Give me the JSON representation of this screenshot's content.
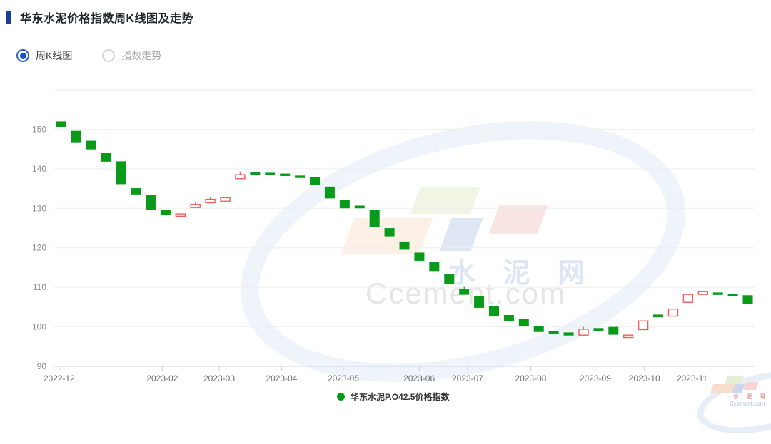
{
  "header": {
    "title": "华东水泥价格指数周K线图及走势"
  },
  "controls": {
    "radio_options": [
      {
        "label": "周K线图",
        "selected": true
      },
      {
        "label": "指数走势",
        "selected": false
      }
    ]
  },
  "watermark": {
    "brand": "水 泥 网",
    "domain": "Ccement.com"
  },
  "corner_logo": {
    "brand": "水 泥 网",
    "domain": "Ccement.com"
  },
  "chart_data": {
    "type": "candlestick",
    "legend": "华东水泥P.O42.5价格指数",
    "colors": {
      "down": "#089a18",
      "up": "#f15c5c",
      "up_fill": "#ffffff",
      "grid": "#eeeeee",
      "axis_line": "#ccd3e3",
      "tick": "#c3cce0",
      "y_label": "#8c8c8c",
      "x_label": "#6e6e6e"
    },
    "y_axis": {
      "min": 90,
      "max": 160,
      "ticks": [
        90,
        100,
        110,
        120,
        130,
        140,
        150
      ]
    },
    "x_ticks": [
      {
        "label": "2022-12",
        "pos": 0.008
      },
      {
        "label": "2023-02",
        "pos": 0.155
      },
      {
        "label": "2023-03",
        "pos": 0.236
      },
      {
        "label": "2023-04",
        "pos": 0.325
      },
      {
        "label": "2023-05",
        "pos": 0.413
      },
      {
        "label": "2023-06",
        "pos": 0.521
      },
      {
        "label": "2023-07",
        "pos": 0.59
      },
      {
        "label": "2023-08",
        "pos": 0.68
      },
      {
        "label": "2023-09",
        "pos": 0.772
      },
      {
        "label": "2023-10",
        "pos": 0.842
      },
      {
        "label": "2023-11",
        "pos": 0.91
      }
    ],
    "candles": [
      [
        151.9,
        150.7,
        151.9,
        150.7
      ],
      [
        149.5,
        146.8,
        149.5,
        146.8
      ],
      [
        147.0,
        145.0,
        147.0,
        145.0
      ],
      [
        143.9,
        141.9,
        143.9,
        141.9
      ],
      [
        141.8,
        136.2,
        141.8,
        136.2
      ],
      [
        135.0,
        133.6,
        135.0,
        133.6
      ],
      [
        133.2,
        129.6,
        133.2,
        129.6
      ],
      [
        129.6,
        128.4,
        129.6,
        128.4
      ],
      [
        128.0,
        128.6,
        128.6,
        128.0
      ],
      [
        130.2,
        131.0,
        131.6,
        130.2
      ],
      [
        131.4,
        132.3,
        132.8,
        131.4
      ],
      [
        131.8,
        132.7,
        132.7,
        131.8
      ],
      [
        137.5,
        138.5,
        139.1,
        137.5
      ],
      [
        139.0,
        138.7,
        139.0,
        138.7
      ],
      [
        138.9,
        138.6,
        138.9,
        138.6
      ],
      [
        138.7,
        138.4,
        138.7,
        138.4
      ],
      [
        138.2,
        137.9,
        138.2,
        137.9
      ],
      [
        137.9,
        136.0,
        137.9,
        136.0
      ],
      [
        135.4,
        132.6,
        135.4,
        132.6
      ],
      [
        132.1,
        130.1,
        132.1,
        130.1
      ],
      [
        130.6,
        130.1,
        130.6,
        130.1
      ],
      [
        129.6,
        125.4,
        129.6,
        125.4
      ],
      [
        124.9,
        123.0,
        124.9,
        123.0
      ],
      [
        121.5,
        119.6,
        121.5,
        119.6
      ],
      [
        118.7,
        116.8,
        118.7,
        116.8
      ],
      [
        116.3,
        114.2,
        116.3,
        114.2
      ],
      [
        113.2,
        111.0,
        113.2,
        111.0
      ],
      [
        109.4,
        108.2,
        110.1,
        108.2
      ],
      [
        107.6,
        104.9,
        107.6,
        104.9
      ],
      [
        105.2,
        102.7,
        105.2,
        102.7
      ],
      [
        102.9,
        101.6,
        102.9,
        101.6
      ],
      [
        101.9,
        100.2,
        101.9,
        100.2
      ],
      [
        100.1,
        98.8,
        100.1,
        98.8
      ],
      [
        98.8,
        98.2,
        98.8,
        98.2
      ],
      [
        98.5,
        97.9,
        98.5,
        97.9
      ],
      [
        97.9,
        99.4,
        100.0,
        97.9
      ],
      [
        99.6,
        99.0,
        99.6,
        99.0
      ],
      [
        99.9,
        98.1,
        99.9,
        98.1
      ],
      [
        97.3,
        97.9,
        97.9,
        97.3
      ],
      [
        99.3,
        101.5,
        101.5,
        99.3
      ],
      [
        103.0,
        102.5,
        103.0,
        102.5
      ],
      [
        102.7,
        104.5,
        104.5,
        102.7
      ],
      [
        106.2,
        108.2,
        108.2,
        106.2
      ],
      [
        108.2,
        108.9,
        108.9,
        108.2
      ],
      [
        108.6,
        108.2,
        108.6,
        108.2
      ],
      [
        108.2,
        107.8,
        108.2,
        107.8
      ],
      [
        107.9,
        105.8,
        107.9,
        105.8
      ]
    ]
  }
}
